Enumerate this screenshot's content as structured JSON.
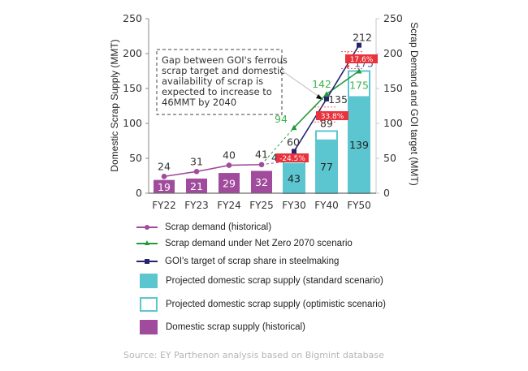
{
  "chart_data": {
    "type": "bar",
    "title": "",
    "categories": [
      "FY22",
      "FY23",
      "FY24",
      "FY25",
      "FY30",
      "FY40",
      "FY50"
    ],
    "ylabel_left": "Domestic Scrap Supply (MMT)",
    "ylabel_right": "Scrap Demand and GOI target (MMT)",
    "ylim": [
      0,
      250
    ],
    "yticks": [
      "0",
      "50",
      "100",
      "150",
      "200",
      "250"
    ],
    "y_right_lim": [
      0,
      250
    ],
    "grid": false,
    "series": [
      {
        "name": "Domestic scrap supply (historical)",
        "kind": "bar",
        "color": "#a04b9c",
        "values": [
          19,
          21,
          29,
          32,
          null,
          null,
          null
        ],
        "labels": [
          "19",
          "21",
          "29",
          "32",
          "",
          "",
          ""
        ]
      },
      {
        "name": "Projected domestic scrap supply (standard scenario)",
        "kind": "bar",
        "color": "#5cc6d0",
        "values": [
          null,
          null,
          null,
          null,
          43,
          77,
          139
        ],
        "labels": [
          "",
          "",
          "",
          "",
          "43",
          "77",
          "139"
        ]
      },
      {
        "name": "Projected domestic scrap supply (optimistic scenario)",
        "kind": "bar-outline",
        "color": "#5cc6d0",
        "values": [
          null,
          null,
          null,
          null,
          45,
          89,
          175
        ],
        "labels": [
          "",
          "",
          "",
          "",
          "45",
          "89",
          "175"
        ]
      },
      {
        "name": "Scrap demand (historical)",
        "kind": "line",
        "color": "#a04b9c",
        "marker": "circle",
        "values": [
          24,
          31,
          40,
          41,
          null,
          null,
          null
        ],
        "labels": [
          "24",
          "31",
          "40",
          "41",
          "",
          "",
          ""
        ]
      },
      {
        "name": "Scrap demand under Net Zero 2070 scenario",
        "kind": "line",
        "color": "#1f9a3c",
        "marker": "triangle",
        "values": [
          null,
          null,
          null,
          41,
          94,
          142,
          175
        ],
        "labels": [
          "",
          "",
          "",
          "",
          "94",
          "142",
          "175"
        ]
      },
      {
        "name": "GOI's target of scrap share in steelmaking",
        "kind": "line",
        "color": "#26246e",
        "marker": "square",
        "values": [
          null,
          null,
          null,
          null,
          60,
          135,
          212
        ],
        "labels": [
          "",
          "",
          "",
          "",
          "60",
          "135",
          "212"
        ]
      }
    ],
    "annotations": [
      {
        "category": "FY30",
        "text": "-24.5%"
      },
      {
        "category": "FY40",
        "text": "33.8%"
      },
      {
        "category": "FY50",
        "text": "17.6%"
      }
    ],
    "note": [
      "Gap between GOI's ferrous",
      "scrap target and domestic",
      "availability of scrap is",
      "expected to increase to",
      "46MMT by 2040"
    ],
    "legend_position": "bottom"
  },
  "legend": [
    {
      "label": "Scrap demand (historical)",
      "type": "line",
      "color": "#a04b9c",
      "marker": "circle"
    },
    {
      "label": "Scrap demand under Net Zero 2070 scenario",
      "type": "line",
      "color": "#1f9a3c",
      "marker": "triangle"
    },
    {
      "label": "GOI's target of scrap share in steelmaking",
      "type": "line",
      "color": "#26246e",
      "marker": "square"
    },
    {
      "label": "Projected domestic scrap supply (standard scenario)",
      "type": "box",
      "color": "#5cc6d0"
    },
    {
      "label": "Projected domestic scrap supply (optimistic scenario)",
      "type": "box-outline",
      "color": "#5cc6d0"
    },
    {
      "label": "Domestic scrap supply (historical)",
      "type": "box",
      "color": "#a04b9c"
    }
  ],
  "source": "Source: EY Parthenon analysis based on Bigmint database"
}
